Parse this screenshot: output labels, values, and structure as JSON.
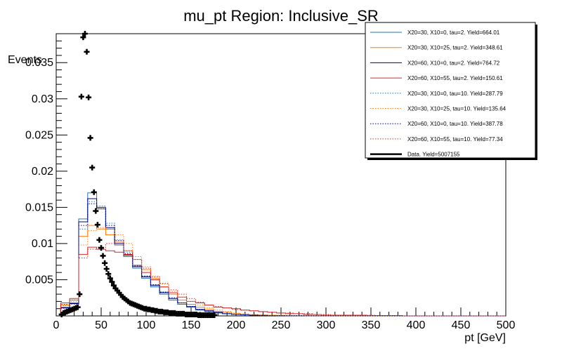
{
  "chart_data": {
    "type": "line",
    "title": "mu_pt Region: Inclusive_SR",
    "xlabel": "pt [GeV]",
    "ylabel": "Events",
    "xlim": [
      0,
      500
    ],
    "ylim": [
      0,
      0.039
    ],
    "x_ticks": [
      0,
      50,
      100,
      150,
      200,
      250,
      300,
      350,
      400,
      450,
      500
    ],
    "y_ticks": [
      0.005,
      0.01,
      0.015,
      0.02,
      0.025,
      0.03,
      0.035
    ],
    "bin_edges": [
      5,
      15,
      25,
      35,
      45,
      55,
      65,
      75,
      85,
      95,
      105,
      115,
      125,
      135,
      145,
      155,
      165,
      175,
      185,
      195,
      205,
      215,
      225,
      235,
      245,
      255,
      265,
      275,
      285,
      295,
      305,
      315,
      325,
      335,
      345,
      355,
      365,
      375,
      385,
      395,
      405,
      415,
      425,
      435,
      445,
      455,
      465,
      475,
      485,
      495,
      500
    ],
    "legend_position": "top-right",
    "series": [
      {
        "name": "X20=30, X10=0, tau=2. Yield=664.01",
        "color": "#1f77b4",
        "style": "solid",
        "values": [
          0.0012,
          0.0018,
          0.0134,
          0.017,
          0.0148,
          0.012,
          0.0098,
          0.0082,
          0.0066,
          0.0052,
          0.004,
          0.003,
          0.0022,
          0.0016,
          0.0012,
          0.0008,
          0.0006,
          0.0004,
          0.0003,
          0.0002,
          0.00015,
          0.0001,
          8e-05,
          5e-05,
          4e-05,
          3e-05,
          2e-05,
          1e-05,
          1e-05,
          1e-05,
          0,
          0,
          0,
          0,
          0,
          0,
          0,
          0,
          0,
          0,
          0,
          0,
          0,
          0,
          0,
          0,
          0,
          0,
          0,
          0
        ]
      },
      {
        "name": "X20=30, X10=25, tau=2. Yield=348.61",
        "color": "#ff7f0e",
        "style": "solid",
        "values": [
          0.0015,
          0.0022,
          0.011,
          0.0125,
          0.012,
          0.0112,
          0.0102,
          0.009,
          0.0078,
          0.0064,
          0.0052,
          0.004,
          0.003,
          0.0022,
          0.0016,
          0.0012,
          0.0009,
          0.0006,
          0.0005,
          0.0003,
          0.0002,
          0.00015,
          0.0001,
          8e-05,
          6e-05,
          4e-05,
          3e-05,
          2e-05,
          2e-05,
          1e-05,
          1e-05,
          0,
          0,
          0,
          0,
          0,
          0,
          0,
          0,
          0,
          0,
          0,
          0,
          0,
          0,
          0,
          0,
          0,
          0,
          0
        ]
      },
      {
        "name": "X20=60, X10=0, tau=2. Yield=764.72",
        "color": "#000080",
        "style": "solid",
        "values": [
          0.0011,
          0.0017,
          0.013,
          0.0162,
          0.015,
          0.0122,
          0.01,
          0.0084,
          0.0068,
          0.0054,
          0.0042,
          0.0032,
          0.0024,
          0.0018,
          0.0013,
          0.0009,
          0.0007,
          0.0005,
          0.0003,
          0.0002,
          0.00015,
          0.0001,
          8e-05,
          5e-05,
          4e-05,
          3e-05,
          2e-05,
          1e-05,
          1e-05,
          1e-05,
          0,
          0,
          0,
          0,
          0,
          0,
          0,
          0,
          0,
          0,
          0,
          0,
          0,
          0,
          0,
          0,
          0,
          0,
          0,
          0
        ]
      },
      {
        "name": "X20=60, X10=55, tau=2. Yield=150.61",
        "color": "#d62728",
        "style": "solid",
        "values": [
          0.0018,
          0.0024,
          0.0085,
          0.0095,
          0.0092,
          0.009,
          0.0088,
          0.0085,
          0.007,
          0.006,
          0.005,
          0.004,
          0.0032,
          0.0026,
          0.002,
          0.0018,
          0.0015,
          0.0012,
          0.0011,
          0.001,
          0.0008,
          0.0007,
          0.0006,
          0.0005,
          0.0004,
          0.0003,
          0.0003,
          0.0002,
          0.0002,
          0.0001,
          0.0001,
          0.0001,
          0.0001,
          0.0001,
          5e-05,
          5e-05,
          5e-05,
          5e-05,
          0,
          0,
          0,
          0,
          0,
          0,
          0,
          0,
          0,
          0,
          0,
          0
        ]
      },
      {
        "name": "X20=30, X10=0, tau=10. Yield=287.79",
        "color": "#1f77b4",
        "style": "dotted",
        "values": [
          0.001,
          0.0016,
          0.012,
          0.0158,
          0.0152,
          0.0128,
          0.0105,
          0.0088,
          0.007,
          0.0055,
          0.0043,
          0.0033,
          0.0024,
          0.0018,
          0.0013,
          0.0009,
          0.0006,
          0.0004,
          0.0003,
          0.0002,
          0.00015,
          0.0001,
          8e-05,
          5e-05,
          4e-05,
          3e-05,
          2e-05,
          1e-05,
          1e-05,
          0,
          0,
          0,
          0,
          0,
          0,
          0,
          0,
          0,
          0,
          0,
          0,
          0,
          0,
          0,
          0,
          0,
          0,
          0,
          0,
          0
        ]
      },
      {
        "name": "X20=30, X10=25, tau=10. Yield=135.64",
        "color": "#ff7f0e",
        "style": "dotted",
        "values": [
          0.0014,
          0.002,
          0.0098,
          0.0118,
          0.0122,
          0.012,
          0.0112,
          0.01,
          0.0082,
          0.0068,
          0.0055,
          0.0044,
          0.0034,
          0.0026,
          0.002,
          0.0015,
          0.0011,
          0.0008,
          0.0006,
          0.0004,
          0.0003,
          0.0002,
          0.00015,
          0.0001,
          8e-05,
          6e-05,
          4e-05,
          3e-05,
          2e-05,
          1e-05,
          1e-05,
          0,
          0,
          0,
          0,
          0,
          0,
          0,
          0,
          0,
          0,
          0,
          0,
          0,
          0,
          0,
          0,
          0,
          0,
          0
        ]
      },
      {
        "name": "X20=60, X10=0, tau=10. Yield=387.78",
        "color": "#000080",
        "style": "dotted",
        "values": [
          0.0011,
          0.0017,
          0.0125,
          0.0155,
          0.0148,
          0.0125,
          0.0104,
          0.0086,
          0.0069,
          0.0055,
          0.0043,
          0.0033,
          0.0025,
          0.0018,
          0.0013,
          0.0009,
          0.0007,
          0.0005,
          0.0003,
          0.0002,
          0.00015,
          0.0001,
          8e-05,
          5e-05,
          4e-05,
          3e-05,
          2e-05,
          1e-05,
          1e-05,
          0,
          0,
          0,
          0,
          0,
          0,
          0,
          0,
          0,
          0,
          0,
          0,
          0,
          0,
          0,
          0,
          0,
          0,
          0,
          0,
          0
        ]
      },
      {
        "name": "X20=60, X10=55, tau=10. Yield=77.34",
        "color": "#d62728",
        "style": "dotted",
        "values": [
          0.0016,
          0.0022,
          0.008,
          0.0092,
          0.0095,
          0.01,
          0.0098,
          0.009,
          0.0078,
          0.0066,
          0.0054,
          0.0045,
          0.0036,
          0.003,
          0.0024,
          0.0019,
          0.0015,
          0.0013,
          0.0011,
          0.0009,
          0.0008,
          0.0007,
          0.0006,
          0.0005,
          0.0004,
          0.0004,
          0.0003,
          0.0003,
          0.0002,
          0.0002,
          0.0001,
          0.0001,
          0.0001,
          0.0001,
          0.0001,
          5e-05,
          5e-05,
          5e-05,
          0,
          0,
          0,
          0,
          0,
          0,
          0,
          0,
          0,
          0,
          0,
          0
        ]
      }
    ],
    "data": {
      "name": "Data. Yield=5007155",
      "color": "#000000",
      "x": [
        6,
        8,
        10,
        12,
        14,
        16,
        18,
        20,
        22,
        24,
        26,
        28,
        30,
        32,
        34,
        36,
        38,
        40,
        42,
        44,
        46,
        48,
        50,
        52,
        54,
        56,
        58,
        60,
        62,
        64,
        66,
        68,
        70,
        72,
        74,
        76,
        78,
        80,
        82,
        84,
        86,
        88,
        90,
        92,
        94,
        96,
        98,
        100,
        102,
        104,
        106,
        108,
        110,
        112,
        114,
        116,
        118,
        120,
        122,
        124,
        126,
        128,
        130,
        132,
        134,
        136,
        138,
        140,
        142,
        144,
        146,
        148,
        150,
        152,
        154,
        156,
        158,
        160,
        162,
        164,
        166,
        168,
        170,
        172,
        174,
        176
      ],
      "y": [
        0.0002,
        0.0004,
        0.0005,
        0.0006,
        0.0007,
        0.0008,
        0.0009,
        0.001,
        0.0011,
        0.0012,
        0.003,
        0.0303,
        0.0385,
        0.039,
        0.0365,
        0.0302,
        0.0246,
        0.0205,
        0.0171,
        0.0145,
        0.0126,
        0.0105,
        0.0094,
        0.0083,
        0.0073,
        0.0065,
        0.0058,
        0.0052,
        0.0047,
        0.0042,
        0.0038,
        0.0035,
        0.0032,
        0.0029,
        0.0026,
        0.0024,
        0.0022,
        0.002,
        0.0018,
        0.0017,
        0.0016,
        0.0015,
        0.0014,
        0.0013,
        0.0012,
        0.0011,
        0.001,
        0.001,
        0.0009,
        0.0009,
        0.0008,
        0.0008,
        0.0007,
        0.0007,
        0.0006,
        0.0006,
        0.0006,
        0.0005,
        0.0005,
        0.0005,
        0.0004,
        0.0004,
        0.0004,
        0.0004,
        0.0003,
        0.0003,
        0.0003,
        0.0003,
        0.0003,
        0.0002,
        0.0002,
        0.0002,
        0.0002,
        0.0002,
        0.0002,
        0.0002,
        0.0001,
        0.0001,
        0.0001,
        0.0001,
        0.0001,
        0.0001,
        0.0001,
        0.0001,
        0.0001,
        0.0001
      ]
    }
  }
}
